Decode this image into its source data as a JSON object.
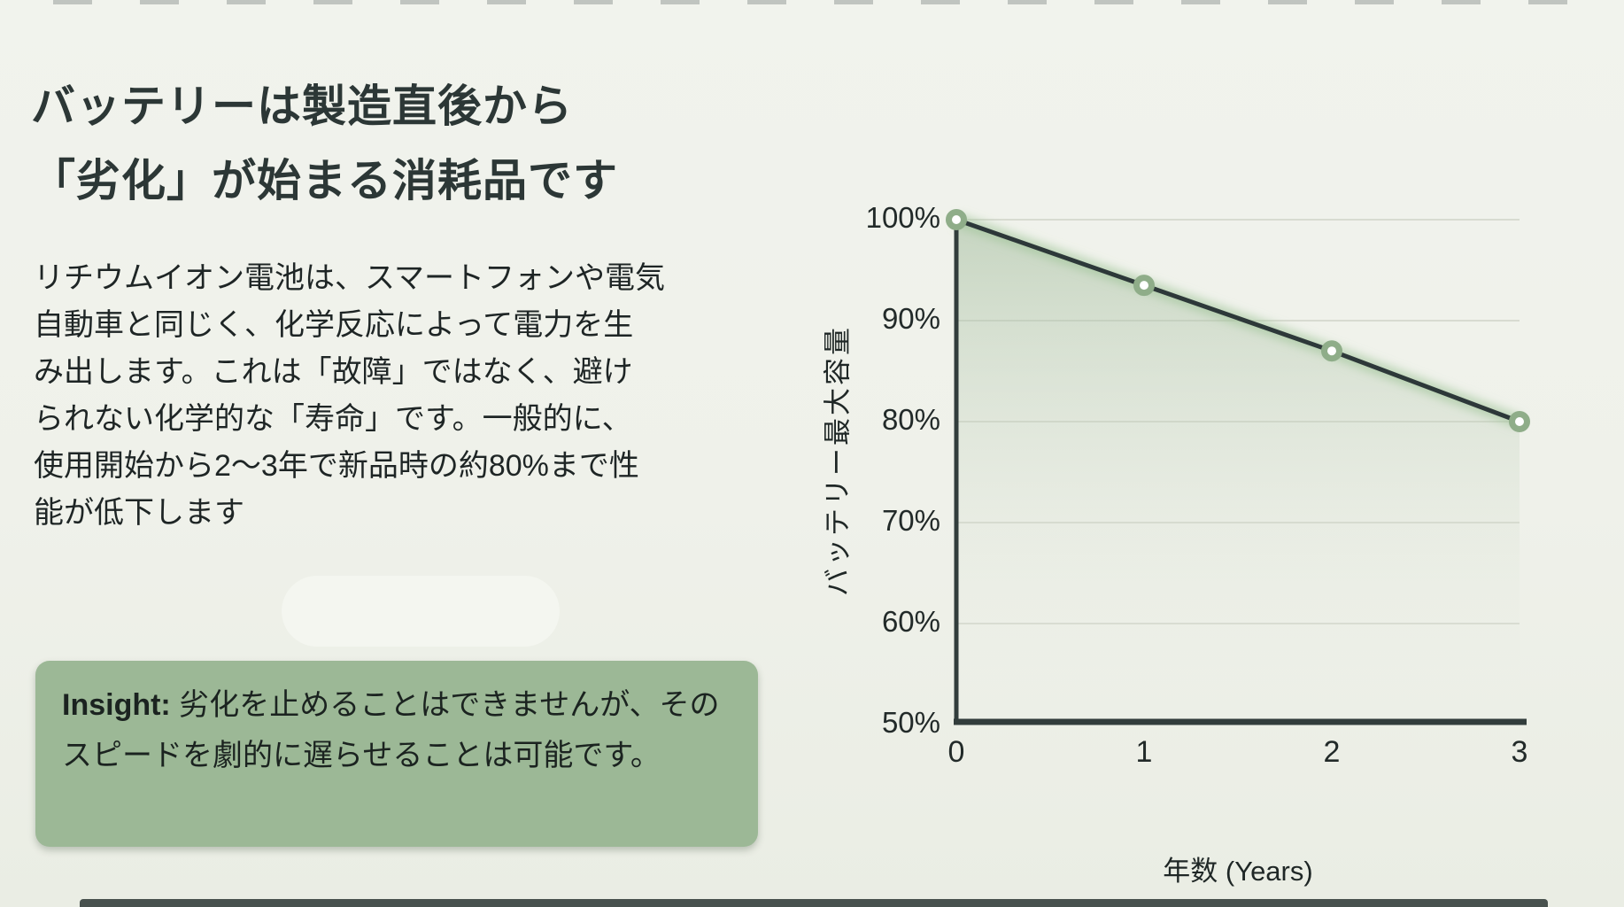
{
  "slide": {
    "title": "バッテリーは製造直後から\n「劣化」が始まる消耗品です",
    "body_lines": [
      "リチウムイオン電池は、スマートフォンや電気",
      "自動車と同じく、化学反応によって電力を生",
      "み出します。これは「故障」ではなく、避け",
      "られない化学的な「寿命」です。一般的に、",
      "使用開始から2〜3年で新品時の約80%まで性",
      "能が低下します"
    ],
    "insight_label": "Insight:",
    "insight_text": " 劣化を止めることはできませんが、そのスピードを劇的に遅らせることは可能です。"
  },
  "colors": {
    "background": "#eff1ea",
    "heading": "#2c3736",
    "body_text": "#1e2525",
    "insight_bg": "#9cb896",
    "grid": "#d8dbd1",
    "axis": "#323d3c",
    "line": "#2d3839",
    "line_glow": "#9fc598",
    "marker_ring": "#8fad89",
    "marker_fill": "#ffffff",
    "area_top": "#9bb795",
    "area_bottom": "#eff1ea"
  },
  "chart_data": {
    "type": "line",
    "x": [
      0,
      1,
      2,
      3
    ],
    "series": [
      {
        "name": "バッテリー最大容量",
        "values": [
          100,
          93.5,
          87,
          80
        ]
      }
    ],
    "x_ticks": [
      "0",
      "1",
      "2",
      "3"
    ],
    "y_ticks": [
      "100%",
      "90%",
      "80%",
      "70%",
      "60%",
      "50%"
    ],
    "y_tick_values": [
      100,
      90,
      80,
      70,
      60,
      50
    ],
    "xlabel": "年数 (Years)",
    "ylabel": "バッテリー最大容量",
    "xlim": [
      0,
      3
    ],
    "ylim": [
      50,
      100
    ],
    "grid": true,
    "legend": false,
    "area_fill": true,
    "markers": true,
    "title": ""
  }
}
